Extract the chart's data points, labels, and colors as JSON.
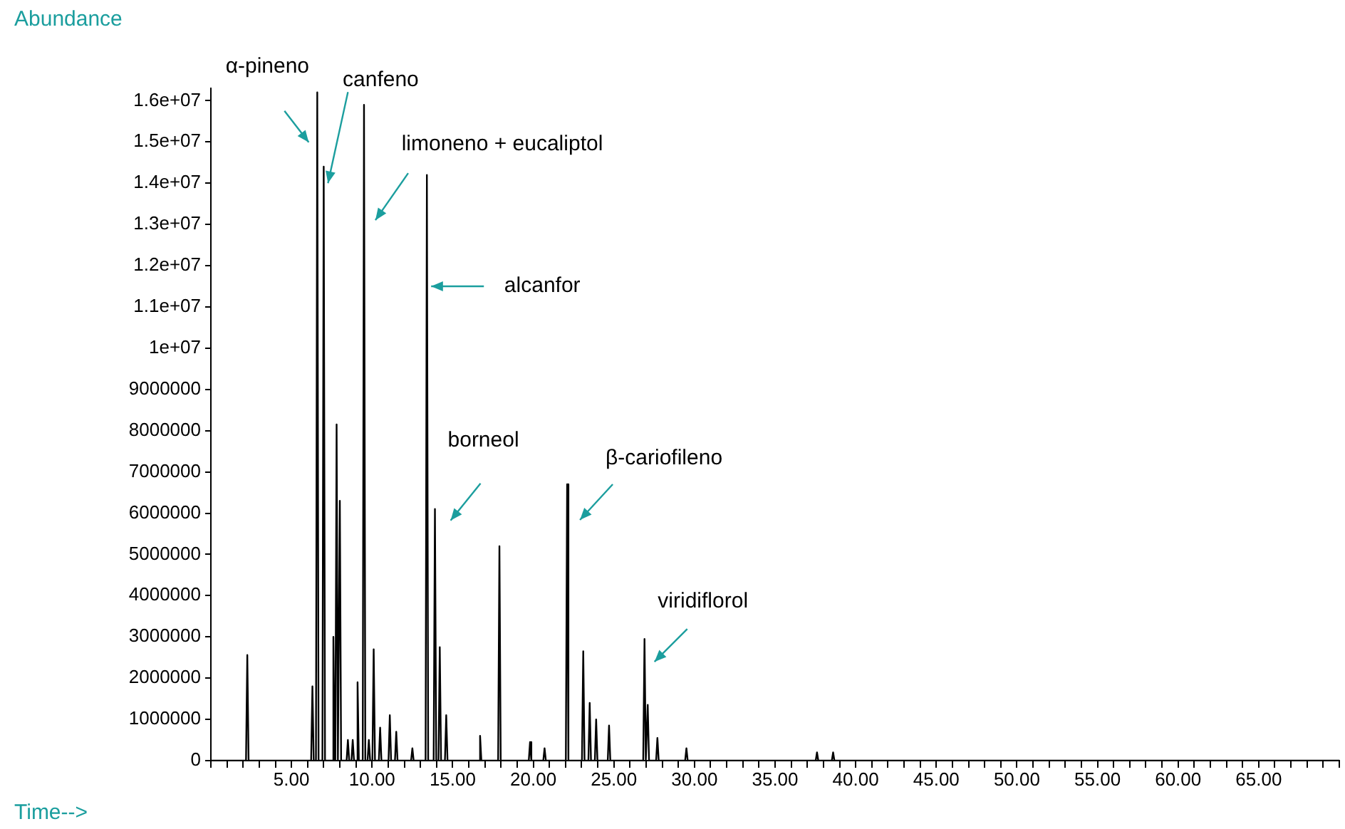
{
  "chart_data": {
    "type": "line",
    "xlabel": "Time-->",
    "ylabel": "Abundance",
    "legend": false,
    "grid": false,
    "marker": "none",
    "line_style": "solid",
    "x": [
      0,
      2.18,
      2.26,
      2.34,
      6.22,
      6.3,
      6.38,
      6.52,
      6.6,
      6.68,
      6.92,
      7.0,
      7.08,
      7.52,
      7.6,
      7.68,
      7.72,
      7.8,
      7.88,
      7.92,
      8.0,
      8.08,
      8.42,
      8.5,
      8.58,
      8.72,
      8.8,
      8.88,
      9.02,
      9.1,
      9.18,
      9.42,
      9.5,
      9.58,
      9.72,
      9.8,
      9.88,
      10.02,
      10.1,
      10.18,
      10.42,
      10.5,
      10.58,
      11.02,
      11.1,
      11.18,
      11.42,
      11.5,
      11.58,
      12.42,
      12.5,
      12.58,
      13.32,
      13.4,
      13.48,
      13.82,
      13.9,
      13.98,
      14.12,
      14.2,
      14.28,
      14.52,
      14.6,
      14.68,
      16.62,
      16.7,
      16.78,
      17.82,
      17.9,
      17.98,
      19.72,
      19.8,
      19.88,
      20.62,
      20.7,
      20.78,
      22.02,
      22.1,
      22.18,
      23.02,
      23.1,
      23.18,
      23.42,
      23.5,
      23.58,
      23.82,
      23.9,
      23.98,
      24.62,
      24.7,
      24.78,
      26.82,
      26.9,
      26.98,
      27.02,
      27.1,
      27.18,
      27.62,
      27.7,
      27.78,
      29.42,
      29.5,
      29.58,
      37.52,
      37.6,
      37.68,
      38.52,
      38.6,
      38.68,
      70
    ],
    "series": [
      {
        "color": "#000000",
        "values": [
          0,
          0,
          2560000,
          0,
          0,
          1800000,
          0,
          0,
          16200000,
          0,
          0,
          14400000,
          0,
          0,
          3000000,
          0,
          0,
          8150000,
          0,
          0,
          6300000,
          0,
          0,
          500000,
          0,
          0,
          500000,
          0,
          0,
          1900000,
          0,
          0,
          15900000,
          0,
          0,
          500000,
          0,
          0,
          2700000,
          0,
          0,
          800000,
          0,
          0,
          1100000,
          0,
          0,
          700000,
          0,
          0,
          300000,
          0,
          0,
          14200000,
          0,
          0,
          6100000,
          0,
          0,
          2750000,
          0,
          0,
          1100000,
          0,
          0,
          600000,
          0,
          0,
          5200000,
          0,
          0,
          450000,
          0,
          0,
          300000,
          0,
          0,
          6700000,
          0,
          0,
          2650000,
          0,
          0,
          1400000,
          0,
          0,
          1000000,
          0,
          0,
          850000,
          0,
          0,
          2950000,
          0,
          0,
          1350000,
          0,
          0,
          550000,
          0,
          0,
          300000,
          0,
          0,
          200000,
          0,
          0,
          200000,
          0,
          0
        ]
      }
    ],
    "xlim": [
      0,
      70
    ],
    "xticks": [
      {
        "value": 0,
        "label": null
      },
      {
        "value": 1,
        "label": null
      },
      {
        "value": 2,
        "label": null
      },
      {
        "value": 3,
        "label": null
      },
      {
        "value": 4,
        "label": null
      },
      {
        "value": 5,
        "label": "5.00"
      },
      {
        "value": 6,
        "label": null
      },
      {
        "value": 7,
        "label": null
      },
      {
        "value": 8,
        "label": null
      },
      {
        "value": 9,
        "label": null
      },
      {
        "value": 10,
        "label": "10.00"
      },
      {
        "value": 11,
        "label": null
      },
      {
        "value": 12,
        "label": null
      },
      {
        "value": 13,
        "label": null
      },
      {
        "value": 14,
        "label": null
      },
      {
        "value": 15,
        "label": "15.00"
      },
      {
        "value": 16,
        "label": null
      },
      {
        "value": 17,
        "label": null
      },
      {
        "value": 18,
        "label": null
      },
      {
        "value": 19,
        "label": null
      },
      {
        "value": 20,
        "label": "20.00"
      },
      {
        "value": 21,
        "label": null
      },
      {
        "value": 22,
        "label": null
      },
      {
        "value": 23,
        "label": null
      },
      {
        "value": 24,
        "label": null
      },
      {
        "value": 25,
        "label": "25.00"
      },
      {
        "value": 26,
        "label": null
      },
      {
        "value": 27,
        "label": null
      },
      {
        "value": 28,
        "label": null
      },
      {
        "value": 29,
        "label": null
      },
      {
        "value": 30,
        "label": "30.00"
      },
      {
        "value": 31,
        "label": null
      },
      {
        "value": 32,
        "label": null
      },
      {
        "value": 33,
        "label": null
      },
      {
        "value": 34,
        "label": null
      },
      {
        "value": 35,
        "label": "35.00"
      },
      {
        "value": 36,
        "label": null
      },
      {
        "value": 37,
        "label": null
      },
      {
        "value": 38,
        "label": null
      },
      {
        "value": 39,
        "label": null
      },
      {
        "value": 40,
        "label": "40.00"
      },
      {
        "value": 41,
        "label": null
      },
      {
        "value": 42,
        "label": null
      },
      {
        "value": 43,
        "label": null
      },
      {
        "value": 44,
        "label": null
      },
      {
        "value": 45,
        "label": "45.00"
      },
      {
        "value": 46,
        "label": null
      },
      {
        "value": 47,
        "label": null
      },
      {
        "value": 48,
        "label": null
      },
      {
        "value": 49,
        "label": null
      },
      {
        "value": 50,
        "label": "50.00"
      },
      {
        "value": 51,
        "label": null
      },
      {
        "value": 52,
        "label": null
      },
      {
        "value": 53,
        "label": null
      },
      {
        "value": 54,
        "label": null
      },
      {
        "value": 55,
        "label": "55.00"
      },
      {
        "value": 56,
        "label": null
      },
      {
        "value": 57,
        "label": null
      },
      {
        "value": 58,
        "label": null
      },
      {
        "value": 59,
        "label": null
      },
      {
        "value": 60,
        "label": "60.00"
      },
      {
        "value": 61,
        "label": null
      },
      {
        "value": 62,
        "label": null
      },
      {
        "value": 63,
        "label": null
      },
      {
        "value": 64,
        "label": null
      },
      {
        "value": 65,
        "label": "65.00"
      },
      {
        "value": 66,
        "label": null
      },
      {
        "value": 67,
        "label": null
      },
      {
        "value": 68,
        "label": null
      },
      {
        "value": 69,
        "label": null
      },
      {
        "value": 70,
        "label": null
      }
    ],
    "ylim": [
      0,
      16300000
    ],
    "yticks": [
      0,
      1000000,
      2000000,
      3000000,
      4000000,
      5000000,
      6000000,
      7000000,
      8000000,
      9000000,
      {
        "value": 10000000,
        "label": "1e+07"
      },
      {
        "value": 11000000,
        "label": "1.1e+07"
      },
      {
        "value": 12000000,
        "label": "1.2e+07"
      },
      {
        "value": 13000000,
        "label": "1.3e+07"
      },
      {
        "value": 14000000,
        "label": "1.4e+07"
      },
      {
        "value": 15000000,
        "label": "1.5e+07"
      },
      {
        "value": 16000000,
        "label": "1.6e+07"
      }
    ],
    "annotations": [
      {
        "text": "α-pineno",
        "x": 6.6,
        "y": 16200000
      },
      {
        "text": "canfeno",
        "x": 7.0,
        "y": 14000000
      },
      {
        "text": "limoneno + eucaliptol",
        "x": 9.5,
        "y": 15900000
      },
      {
        "text": "alcanfor",
        "x": 13.4,
        "y": 11500000
      },
      {
        "text": "borneol",
        "x": 13.9,
        "y": 6100000
      },
      {
        "text": "β-cariofileno",
        "x": 22.1,
        "y": 6700000
      },
      {
        "text": "viridiflorol",
        "x": 26.9,
        "y": 2950000
      }
    ]
  }
}
